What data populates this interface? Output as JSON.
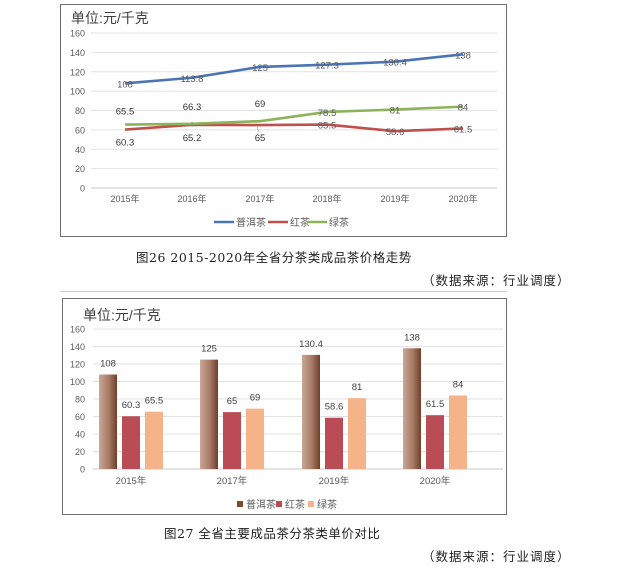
{
  "figures": [
    {
      "caption": "图26  2015-2020年全省分茶类成品茶价格走势",
      "source": "（数据来源：行业调度）"
    },
    {
      "caption": "图27  全省主要成品茶分茶类单价对比",
      "source": "（数据来源：行业调度）"
    }
  ],
  "colors": {
    "puer_line": "#4a74b4",
    "hongcha_line": "#c0504d",
    "lvcha_line": "#8db35a",
    "puer_bar_dark": "#7b4a33",
    "puer_bar_light": "#c9a797",
    "hongcha_bar": "#b94c55",
    "lvcha_bar": "#f5b38a"
  },
  "chart_data": [
    {
      "type": "line",
      "title": "单位:元/千克",
      "xlabel": "",
      "ylabel": "元/千克",
      "categories": [
        "2015年",
        "2016年",
        "2017年",
        "2018年",
        "2019年",
        "2020年"
      ],
      "series": [
        {
          "name": "普洱茶",
          "values": [
            108,
            113.8,
            125,
            127.3,
            130.4,
            138
          ],
          "labels": [
            "108",
            "113.8",
            "125",
            "127.3",
            "130.4",
            "138"
          ]
        },
        {
          "name": "红茶",
          "values": [
            60.3,
            65.2,
            65,
            65.5,
            58.6,
            61.5
          ],
          "labels": [
            "60.3",
            "65.2",
            "65",
            "65.5",
            "58.6",
            "61.5"
          ]
        },
        {
          "name": "绿茶",
          "values": [
            65.5,
            66.3,
            69,
            78.5,
            81,
            84
          ],
          "labels": [
            "65.5",
            "66.3",
            "69",
            "78.5",
            "81",
            "84"
          ]
        }
      ],
      "yticks": [
        "0",
        "20",
        "40",
        "60",
        "80",
        "100",
        "120",
        "140",
        "160"
      ],
      "ylim": [
        0,
        160
      ],
      "grid": true,
      "legend": [
        "普洱茶",
        "红茶",
        "绿茶"
      ],
      "legend_position": "bottom"
    },
    {
      "type": "bar",
      "title": "单位:元/千克",
      "xlabel": "",
      "ylabel": "元/千克",
      "categories": [
        "2015年",
        "2017年",
        "2019年",
        "2020年"
      ],
      "series": [
        {
          "name": "普洱茶",
          "values": [
            108,
            125,
            130.4,
            138
          ],
          "labels": [
            "108",
            "125",
            "130.4",
            "138"
          ]
        },
        {
          "name": "红茶",
          "values": [
            60.3,
            65,
            58.6,
            61.5
          ],
          "labels": [
            "60.3",
            "65",
            "58.6",
            "61.5"
          ]
        },
        {
          "name": "绿茶",
          "values": [
            65.5,
            69,
            81,
            84
          ],
          "labels": [
            "65.5",
            "69",
            "81",
            "84"
          ]
        }
      ],
      "yticks": [
        "0",
        "20",
        "40",
        "60",
        "80",
        "100",
        "120",
        "140",
        "160"
      ],
      "ylim": [
        0,
        160
      ],
      "grid": true,
      "legend": [
        "普洱茶",
        "红茶",
        "绿茶"
      ],
      "legend_position": "bottom"
    }
  ]
}
